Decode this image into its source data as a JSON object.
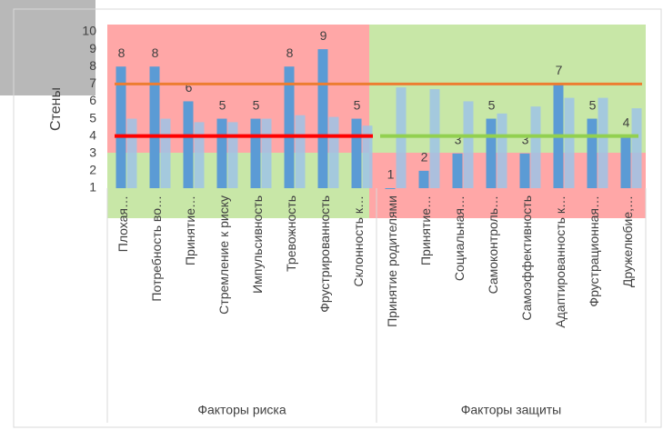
{
  "chart_data": {
    "type": "bar",
    "y_label": "Стены",
    "ylim": [
      1,
      10
    ],
    "yticks": [
      1,
      2,
      3,
      4,
      5,
      6,
      7,
      8,
      9,
      10
    ],
    "groups": [
      {
        "label": "Факторы риска",
        "categories": [
          "Плохая…",
          "Потребность во…",
          "Принятие…",
          "Стремление к риску",
          "Импульсивность",
          "Тревожность",
          "Фрустрированность",
          "Склонность к…"
        ],
        "threshold": 4,
        "threshold_color": "#ff0000"
      },
      {
        "label": "Факторы защиты",
        "categories": [
          "Принятие родителями",
          "Принятие…",
          "Социальная…",
          "Самоконтроль…",
          "Самоэффективность",
          "Адаптированность к…",
          "Фрустрационная…",
          "Дружелюбие,…"
        ],
        "threshold": 4,
        "threshold_color": "#92d050"
      }
    ],
    "series": [
      {
        "color": "#5b9bd5",
        "values": [
          8,
          8,
          6,
          5,
          5,
          8,
          9,
          5,
          1,
          2,
          3,
          5,
          3,
          7,
          5,
          4
        ],
        "labeled": true
      },
      {
        "color": "#9dc3e6",
        "values": [
          5,
          5,
          4.8,
          4.8,
          5,
          5.2,
          5.1,
          4.6,
          6.8,
          6.7,
          6,
          5.3,
          5.7,
          6.2,
          6.2,
          5.6
        ],
        "labeled": false
      }
    ],
    "reference_line": {
      "value": 7,
      "color": "#ed7d31"
    }
  }
}
